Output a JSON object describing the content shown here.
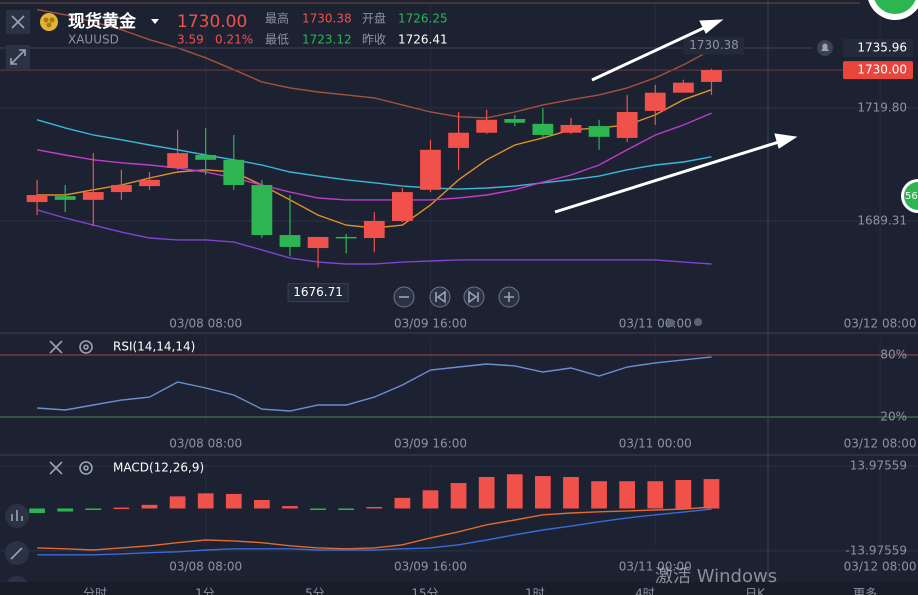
{
  "header": {
    "title": "现货黄金",
    "symbol": "XAUUSD",
    "price": {
      "value": 1730,
      "label": "1730.00"
    },
    "change": 3.59,
    "change_pct": {
      "value": 0.21,
      "label": "0.21%"
    },
    "stats": [
      {
        "label": "最高",
        "value": 1730.38
      },
      {
        "label": "开盘",
        "value": 1726.25
      },
      {
        "label": "最低",
        "value": 1723.12
      },
      {
        "label": "昨收",
        "value": 1726.41
      }
    ]
  },
  "tabs": [
    "分时",
    "1分",
    "5分",
    "15分",
    "1时",
    "4时",
    "日K",
    "更多"
  ],
  "watermark": "激活 Windows",
  "side_badge": 56,
  "chart_data": [
    {
      "type": "candlestick",
      "xlim": [
        -1.32,
        31.35
      ],
      "xticks": [
        {
          "value": 6,
          "label": "03/08 08:00"
        },
        {
          "value": 14,
          "label": "03/09 16:00"
        },
        {
          "value": 22,
          "label": "03/11 00:00"
        },
        {
          "value": 30,
          "label": "03/12 08:00"
        }
      ],
      "ylim": [
        1659.9,
        1748.9
      ],
      "yticks": [
        {
          "value": 1719.8,
          "label": "1719.80"
        },
        1689.31
      ],
      "grid": true,
      "up_color": "#f0514b",
      "down_color": "#2db552",
      "open": [
        1694.4,
        1696.0,
        1695.0,
        1697.1,
        1698.7,
        1703.6,
        1707.1,
        1705.8,
        1699.0,
        1685.5,
        1682.0,
        1685.0,
        1684.7,
        1689.3,
        1697.7,
        1709.0,
        1713.1,
        1716.8,
        1715.5,
        1713.1,
        1714.9,
        1711.7,
        1719.0,
        1723.9,
        1726.8
      ],
      "high": [
        1700.4,
        1699.0,
        1707.6,
        1703.1,
        1702.5,
        1713.9,
        1714.4,
        1712.5,
        1700.4,
        1696.3,
        1685.0,
        1685.8,
        1691.7,
        1698.2,
        1711.2,
        1718.7,
        1719.3,
        1717.9,
        1719.8,
        1717.1,
        1716.6,
        1723.3,
        1726.0,
        1727.4,
        1730.38
      ],
      "low": [
        1690.9,
        1691.7,
        1687.9,
        1695.0,
        1697.7,
        1703.1,
        1701.7,
        1697.7,
        1684.7,
        1679.8,
        1676.71,
        1680.6,
        1680.9,
        1689.0,
        1697.1,
        1703.1,
        1712.8,
        1714.9,
        1711.7,
        1712.8,
        1708.5,
        1710.6,
        1715.2,
        1723.9,
        1723.3
      ],
      "close": [
        1696.3,
        1695.0,
        1697.1,
        1699.0,
        1700.4,
        1707.6,
        1705.8,
        1699.0,
        1685.5,
        1682.3,
        1685.0,
        1684.7,
        1689.3,
        1697.1,
        1708.5,
        1713.1,
        1716.6,
        1715.8,
        1712.5,
        1715.2,
        1712.0,
        1718.7,
        1723.9,
        1726.6,
        1730
      ],
      "lines": [
        {
          "color": "#a8503a",
          "values": [
            1746.3,
            1744.9,
            1743.0,
            1740.9,
            1738.2,
            1736.0,
            1733.3,
            1730.1,
            1726.8,
            1725.2,
            1724.1,
            1723.3,
            1722.5,
            1720.6,
            1718.7,
            1717.4,
            1717.1,
            1718.7,
            1720.6,
            1722.0,
            1723.3,
            1725.2,
            1727.9,
            1731.4,
            1735.5
          ]
        },
        {
          "color": "#3ab8d8",
          "values": [
            1716.6,
            1714.4,
            1712.5,
            1711.2,
            1709.8,
            1708.5,
            1707.1,
            1705.8,
            1704.4,
            1702.5,
            1701.4,
            1700.4,
            1699.6,
            1698.7,
            1698.2,
            1697.9,
            1698.2,
            1698.7,
            1699.6,
            1700.4,
            1701.4,
            1703.1,
            1704.4,
            1705.2,
            1706.6
          ]
        },
        {
          "color": "#7e44d0",
          "values": [
            1692.3,
            1690.1,
            1688.2,
            1686.3,
            1684.7,
            1684.2,
            1684.2,
            1683.6,
            1681.5,
            1679.3,
            1678.2,
            1677.7,
            1677.7,
            1678.2,
            1678.5,
            1678.8,
            1678.8,
            1678.8,
            1678.8,
            1678.8,
            1678.8,
            1678.8,
            1678.8,
            1678.2,
            1677.7
          ]
        },
        {
          "color": "#e0902a",
          "values": [
            1696.3,
            1696.3,
            1697.7,
            1699.0,
            1700.9,
            1702.5,
            1703.1,
            1702.5,
            1699.0,
            1695.0,
            1690.9,
            1688.2,
            1687.4,
            1688.2,
            1693.6,
            1700.4,
            1705.8,
            1709.8,
            1711.7,
            1713.9,
            1714.4,
            1715.2,
            1717.9,
            1722.0,
            1724.7
          ]
        },
        {
          "color": "#c03cc8",
          "values": [
            1708.5,
            1707.1,
            1705.8,
            1705.0,
            1704.4,
            1703.6,
            1702.5,
            1700.9,
            1699.0,
            1697.1,
            1695.5,
            1695.0,
            1695.0,
            1695.0,
            1695.0,
            1695.5,
            1696.3,
            1697.7,
            1699.8,
            1701.7,
            1704.4,
            1708.5,
            1712.5,
            1715.2,
            1718.4
          ]
        }
      ],
      "high_label": 1730.38,
      "low_label": 1676.71,
      "last_price": {
        "value": 1730,
        "label": "1730.00"
      },
      "alert_price": 1735.96
    },
    {
      "type": "line",
      "title": "RSI(14,14,14)",
      "xlim": [
        -1.32,
        31.35
      ],
      "xticks": [
        {
          "value": 6,
          "label": "03/08 08:00"
        },
        {
          "value": 14,
          "label": "03/09 16:00"
        },
        {
          "value": 22,
          "label": "03/11 00:00"
        },
        {
          "value": 30,
          "label": "03/12 08:00"
        }
      ],
      "ylim": [
        0,
        100
      ],
      "yticks": [
        {
          "value": 80,
          "label": "80%"
        },
        {
          "value": 20,
          "label": "20%"
        }
      ],
      "tick_colors": [
        "#a8404a",
        "#3e8d4a"
      ],
      "grid": true,
      "color": "#6d8fd0",
      "values": [
        28.7,
        26.8,
        31.6,
        36.4,
        39.3,
        53.9,
        48.1,
        41.3,
        27.7,
        25.8,
        31.6,
        31.6,
        39.3,
        51.0,
        65.5,
        68.4,
        71.3,
        69.4,
        63.5,
        67.4,
        59.7,
        68.4,
        72.3,
        75.2,
        78.1
      ]
    },
    {
      "type": "bar",
      "title": "MACD(12,26,9)",
      "xlim": [
        -1.32,
        31.35
      ],
      "xticks": [
        {
          "value": 6,
          "label": "03/08 08:00"
        },
        {
          "value": 14,
          "label": "03/09 16:00"
        },
        {
          "value": 22,
          "label": "03/11 00:00"
        },
        {
          "value": 30,
          "label": "03/12 08:00"
        }
      ],
      "ylim": [
        -17,
        16
      ],
      "yticks": [
        13.97559,
        -13.97559
      ],
      "grid": true,
      "up_color": "#f0514b",
      "down_color": "#2db552",
      "values": [
        -1.5,
        -1,
        -0.5,
        0.3,
        1.2,
        4,
        5,
        4.8,
        2.8,
        0.8,
        -0.3,
        -0.3,
        0.5,
        3.5,
        6,
        8.4,
        10.4,
        11.3,
        10.7,
        10.4,
        9,
        9,
        9,
        9.4,
        9.7
      ],
      "lines": [
        {
          "color": "#e06a30",
          "values": [
            -13.0,
            -13.3,
            -13.7,
            -13.0,
            -12.3,
            -11.3,
            -10.4,
            -10.7,
            -11.3,
            -12.3,
            -13.0,
            -13.3,
            -13.0,
            -12.0,
            -9.7,
            -7.7,
            -5.4,
            -3.8,
            -2.1,
            -1.5,
            -1.1,
            -0.8,
            -0.5,
            -0.2,
            0.5
          ]
        },
        {
          "color": "#3a6ad8",
          "values": [
            -15.3,
            -15.3,
            -15.3,
            -15.0,
            -14.6,
            -14.3,
            -13.7,
            -13.3,
            -13.3,
            -13.3,
            -13.7,
            -13.7,
            -13.7,
            -13.3,
            -13.0,
            -12.0,
            -10.4,
            -8.7,
            -7.1,
            -5.8,
            -4.4,
            -3.1,
            -2.1,
            -1.2,
            -0.2
          ]
        }
      ]
    }
  ]
}
